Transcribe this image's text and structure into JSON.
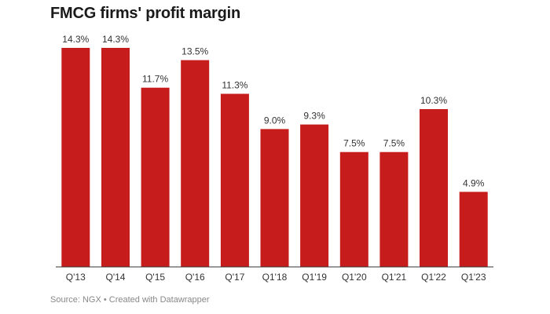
{
  "chart_data": {
    "type": "bar",
    "title": "FMCG firms' profit margin",
    "categories": [
      "Q'13",
      "Q'14",
      "Q'15",
      "Q'16",
      "Q'17",
      "Q1'18",
      "Q1'19",
      "Q1'20",
      "Q1'21",
      "Q1'22",
      "Q1'23"
    ],
    "values": [
      14.3,
      14.3,
      11.7,
      13.5,
      11.3,
      9.0,
      9.3,
      7.5,
      7.5,
      10.3,
      4.9
    ],
    "value_labels": [
      "14.3%",
      "14.3%",
      "11.7%",
      "13.5%",
      "11.3%",
      "9.0%",
      "9.3%",
      "7.5%",
      "7.5%",
      "10.3%",
      "4.9%"
    ],
    "xlabel": "",
    "ylabel": "",
    "ylim": [
      0,
      14.3
    ],
    "grid": false,
    "legend": "none",
    "bar_color": "#c71c1c",
    "baseline_color": "#333333"
  },
  "footer": {
    "source": "Source: NGX • Created with Datawrapper"
  }
}
